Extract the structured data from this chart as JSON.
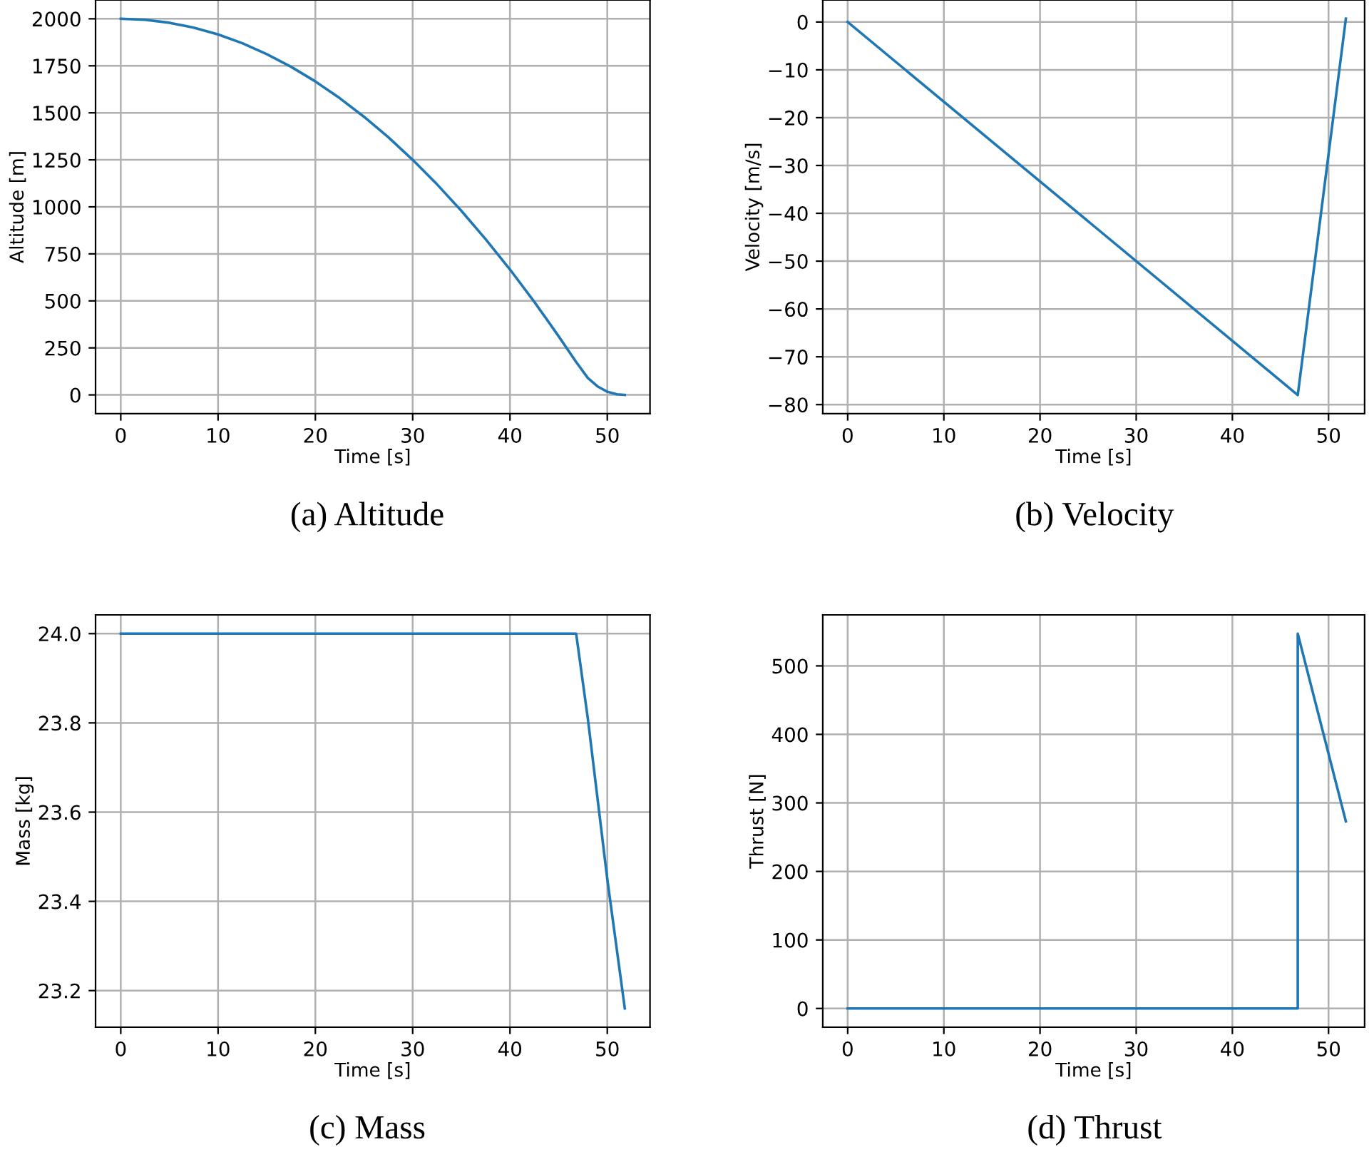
{
  "chart_data": [
    {
      "type": "line",
      "title": "(a) Altitude",
      "xlabel": "Time [s]",
      "ylabel": "Altitude [m]",
      "grid": true,
      "xlim": [
        -2.59,
        54.39
      ],
      "xticks": [
        0,
        10,
        20,
        30,
        40,
        50
      ],
      "ylim": [
        -100,
        2100
      ],
      "yticks": [
        0,
        250,
        500,
        750,
        1000,
        1250,
        1500,
        1750,
        2000
      ],
      "series": [
        {
          "color": "#1f77b4",
          "x": [
            0,
            2.5,
            5,
            7.5,
            10,
            12.5,
            15,
            17.5,
            20,
            22.5,
            25,
            27.5,
            30,
            32.5,
            35,
            37.5,
            40,
            42.5,
            45,
            46.8,
            48,
            49,
            50,
            51,
            51.8
          ],
          "values": [
            2000,
            1995,
            1979,
            1953,
            1917,
            1870,
            1812,
            1745,
            1667,
            1578,
            1479,
            1370,
            1250,
            1120,
            979,
            828,
            667,
            495,
            312,
            175,
            90,
            45,
            17,
            3,
            0
          ]
        }
      ]
    },
    {
      "type": "line",
      "title": "(b) Velocity",
      "xlabel": "Time [s]",
      "ylabel": "Velocity [m/s]",
      "grid": true,
      "xlim": [
        -2.59,
        53.75
      ],
      "xticks": [
        0,
        10,
        20,
        30,
        40,
        50
      ],
      "ylim": [
        -81.9,
        4.6
      ],
      "yticks": [
        {
          "value": -80,
          "label": "−80"
        },
        {
          "value": -70,
          "label": "−70"
        },
        {
          "value": -60,
          "label": "−60"
        },
        {
          "value": -50,
          "label": "−50"
        },
        {
          "value": -40,
          "label": "−40"
        },
        {
          "value": -30,
          "label": "−30"
        },
        {
          "value": -20,
          "label": "−20"
        },
        {
          "value": -10,
          "label": "−10"
        },
        0
      ],
      "series": [
        {
          "color": "#1f77b4",
          "x": [
            0,
            46.8,
            51.8
          ],
          "values": [
            0,
            -78,
            0.7
          ]
        }
      ]
    },
    {
      "type": "line",
      "title": "(c) Mass",
      "xlabel": "Time [s]",
      "ylabel": "Mass [kg]",
      "grid": true,
      "xlim": [
        -2.59,
        54.39
      ],
      "xticks": [
        0,
        10,
        20,
        30,
        40,
        50
      ],
      "ylim": [
        23.118,
        24.042
      ],
      "yticks": [
        {
          "value": 23.2,
          "label": "23.2"
        },
        {
          "value": 23.4,
          "label": "23.4"
        },
        {
          "value": 23.6,
          "label": "23.6"
        },
        {
          "value": 23.8,
          "label": "23.8"
        },
        {
          "value": 24.0,
          "label": "24.0"
        }
      ],
      "series": [
        {
          "color": "#1f77b4",
          "x": [
            0,
            46.8,
            48,
            50,
            51.8
          ],
          "values": [
            24.0,
            24.0,
            23.81,
            23.45,
            23.16
          ]
        }
      ]
    },
    {
      "type": "line",
      "title": "(d) Thrust",
      "xlabel": "Time [s]",
      "ylabel": "Thrust [N]",
      "grid": true,
      "xlim": [
        -2.59,
        53.75
      ],
      "xticks": [
        0,
        10,
        20,
        30,
        40,
        50
      ],
      "ylim": [
        -27.35,
        574.4
      ],
      "yticks": [
        0,
        100,
        200,
        300,
        400,
        500
      ],
      "series": [
        {
          "color": "#1f77b4",
          "x": [
            0,
            46.8,
            46.8,
            51.8
          ],
          "values": [
            0,
            0,
            547,
            273
          ]
        }
      ]
    }
  ]
}
